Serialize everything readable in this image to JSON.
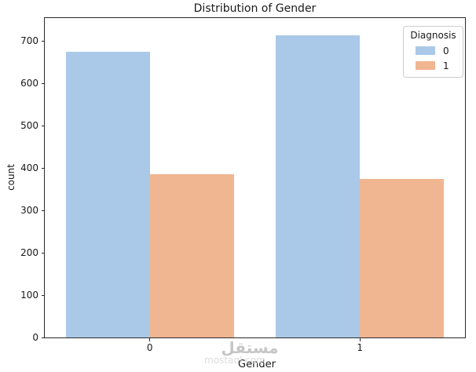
{
  "chart_data": {
    "type": "bar",
    "title": "Distribution of Gender",
    "xlabel": "Gender",
    "ylabel": "count",
    "categories": [
      "0",
      "1"
    ],
    "series": [
      {
        "name": "0",
        "color": "#aac9e8",
        "values": [
          675,
          715
        ]
      },
      {
        "name": "1",
        "color": "#f0b591",
        "values": [
          385,
          375
        ]
      }
    ],
    "legend": {
      "title": "Diagnosis",
      "position": "upper right"
    },
    "ylim": [
      0,
      755
    ],
    "yticks": [
      0,
      100,
      200,
      300,
      400,
      500,
      600,
      700
    ],
    "grid": false,
    "bar_group_width_fraction": 0.8
  },
  "watermark": {
    "arabic": "مستقل",
    "latin": "mostaql.com"
  },
  "colors": {
    "background": "#ffffff",
    "spine": "#2b2b2b",
    "text": "#1a1a1a",
    "legend_border": "#cccccc",
    "watermark_arabic": "#c6c6c6",
    "watermark_latin": "#dbdbdb"
  }
}
